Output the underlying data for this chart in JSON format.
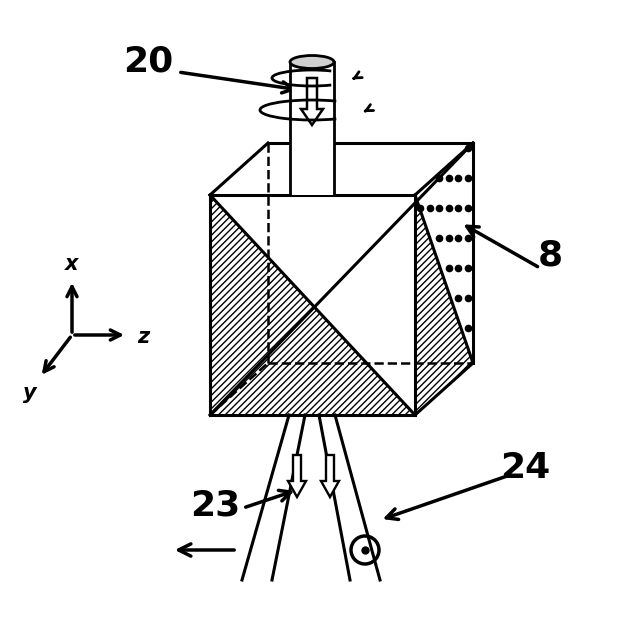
{
  "bg_color": "#ffffff",
  "line_color": "#000000",
  "label_20": "20",
  "label_8": "8",
  "label_23": "23",
  "label_24": "24",
  "label_x": "x",
  "label_y": "y",
  "label_z": "z",
  "fig_width": 6.24,
  "fig_height": 6.4,
  "dpi": 100
}
